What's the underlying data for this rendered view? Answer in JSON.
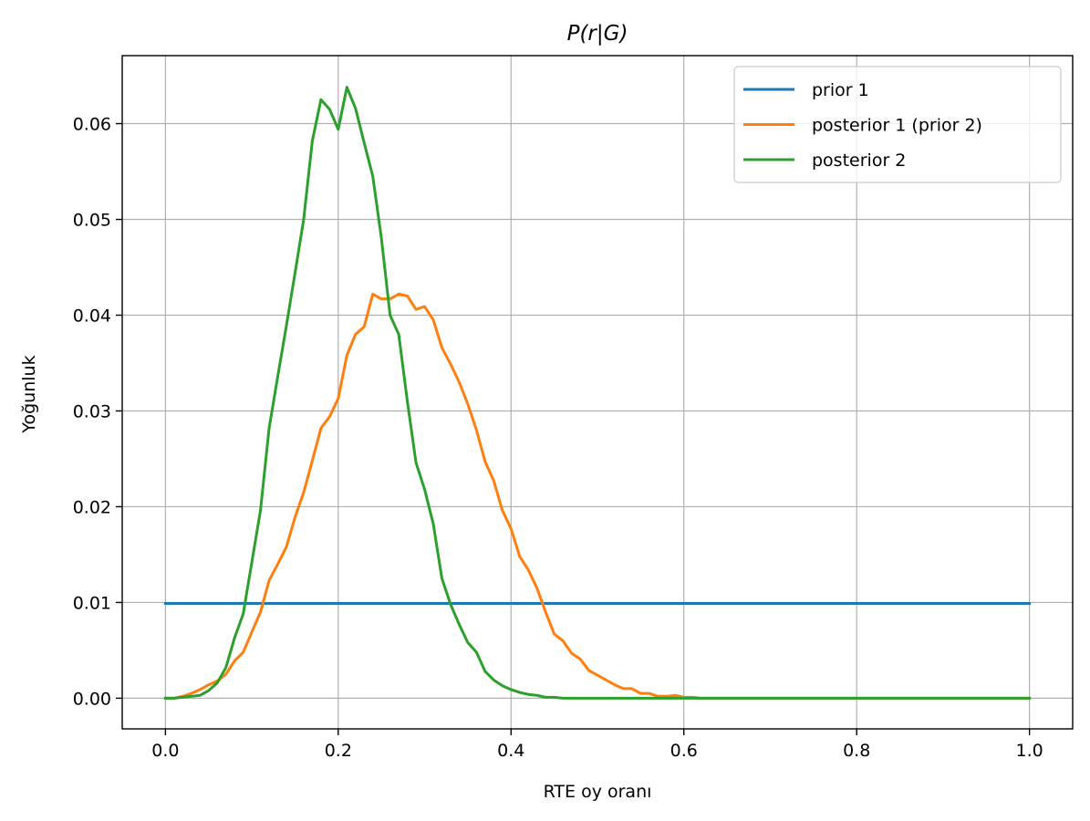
{
  "chart_data": {
    "type": "line",
    "title": "P(r|G)",
    "xlabel": "RTE oy oranı",
    "ylabel": "Yoğunluk",
    "xlim": [
      -0.05,
      1.05
    ],
    "ylim": [
      -0.0032,
      0.0671
    ],
    "xticks": [
      0.0,
      0.2,
      0.4,
      0.6,
      0.8,
      1.0
    ],
    "xtick_labels": [
      "0.0",
      "0.2",
      "0.4",
      "0.6",
      "0.8",
      "1.0"
    ],
    "yticks": [
      0.0,
      0.01,
      0.02,
      0.03,
      0.04,
      0.05,
      0.06
    ],
    "ytick_labels": [
      "0.00",
      "0.01",
      "0.02",
      "0.03",
      "0.04",
      "0.05",
      "0.06"
    ],
    "grid": true,
    "legend_position": "top-right",
    "x": [
      0.0,
      0.01,
      0.02,
      0.03,
      0.04,
      0.05,
      0.06,
      0.07,
      0.08,
      0.09,
      0.1,
      0.11,
      0.12,
      0.13,
      0.14,
      0.15,
      0.16,
      0.17,
      0.18,
      0.19,
      0.2,
      0.21,
      0.22,
      0.23,
      0.24,
      0.25,
      0.26,
      0.27,
      0.28,
      0.29,
      0.3,
      0.31,
      0.32,
      0.33,
      0.34,
      0.35,
      0.36,
      0.37,
      0.38,
      0.39,
      0.4,
      0.41,
      0.42,
      0.43,
      0.44,
      0.45,
      0.46,
      0.47,
      0.48,
      0.49,
      0.5,
      0.51,
      0.52,
      0.53,
      0.54,
      0.55,
      0.56,
      0.57,
      0.58,
      0.59,
      0.6,
      0.61,
      0.62,
      0.63,
      0.64,
      0.65,
      0.66,
      0.67,
      0.68,
      0.69,
      0.7,
      0.71,
      0.72,
      0.73,
      0.74,
      0.75,
      0.76,
      0.77,
      0.78,
      0.79,
      0.8,
      0.81,
      0.82,
      0.83,
      0.84,
      0.85,
      0.86,
      0.87,
      0.88,
      0.89,
      0.9,
      0.91,
      0.92,
      0.93,
      0.94,
      0.95,
      0.96,
      0.97,
      0.98,
      0.99,
      1.0
    ],
    "series": [
      {
        "name": "prior 1",
        "color": "#1f77b4",
        "values": [
          0.0099,
          0.0099,
          0.0099,
          0.0099,
          0.0099,
          0.0099,
          0.0099,
          0.0099,
          0.0099,
          0.0099,
          0.0099,
          0.0099,
          0.0099,
          0.0099,
          0.0099,
          0.0099,
          0.0099,
          0.0099,
          0.0099,
          0.0099,
          0.0099,
          0.0099,
          0.0099,
          0.0099,
          0.0099,
          0.0099,
          0.0099,
          0.0099,
          0.0099,
          0.0099,
          0.0099,
          0.0099,
          0.0099,
          0.0099,
          0.0099,
          0.0099,
          0.0099,
          0.0099,
          0.0099,
          0.0099,
          0.0099,
          0.0099,
          0.0099,
          0.0099,
          0.0099,
          0.0099,
          0.0099,
          0.0099,
          0.0099,
          0.0099,
          0.0099,
          0.0099,
          0.0099,
          0.0099,
          0.0099,
          0.0099,
          0.0099,
          0.0099,
          0.0099,
          0.0099,
          0.0099,
          0.0099,
          0.0099,
          0.0099,
          0.0099,
          0.0099,
          0.0099,
          0.0099,
          0.0099,
          0.0099,
          0.0099,
          0.0099,
          0.0099,
          0.0099,
          0.0099,
          0.0099,
          0.0099,
          0.0099,
          0.0099,
          0.0099,
          0.0099,
          0.0099,
          0.0099,
          0.0099,
          0.0099,
          0.0099,
          0.0099,
          0.0099,
          0.0099,
          0.0099,
          0.0099,
          0.0099,
          0.0099,
          0.0099,
          0.0099,
          0.0099,
          0.0099,
          0.0099,
          0.0099,
          0.0099,
          0.0099
        ]
      },
      {
        "name": "posterior 1 (prior 2)",
        "color": "#ff7f0e",
        "values": [
          0.0,
          0.0,
          0.0002,
          0.0005,
          0.0009,
          0.0014,
          0.0018,
          0.0025,
          0.0039,
          0.0048,
          0.0069,
          0.009,
          0.0123,
          0.014,
          0.0158,
          0.0189,
          0.0215,
          0.0248,
          0.0282,
          0.0294,
          0.0313,
          0.0358,
          0.038,
          0.0388,
          0.0422,
          0.0417,
          0.0417,
          0.0422,
          0.042,
          0.0406,
          0.0409,
          0.0395,
          0.0366,
          0.0349,
          0.033,
          0.0307,
          0.028,
          0.0247,
          0.0227,
          0.0196,
          0.0177,
          0.0148,
          0.0134,
          0.0115,
          0.009,
          0.0067,
          0.006,
          0.0047,
          0.0041,
          0.0029,
          0.0024,
          0.0019,
          0.0014,
          0.001,
          0.001,
          0.0005,
          0.0005,
          0.0002,
          0.0002,
          0.0003,
          0.0001,
          0.0001,
          0.0,
          0.0,
          0.0,
          0.0,
          0.0,
          0.0,
          0.0,
          0.0,
          0.0,
          0.0,
          0.0,
          0.0,
          0.0,
          0.0,
          0.0,
          0.0,
          0.0,
          0.0,
          0.0,
          0.0,
          0.0,
          0.0,
          0.0,
          0.0,
          0.0,
          0.0,
          0.0,
          0.0,
          0.0,
          0.0,
          0.0,
          0.0,
          0.0,
          0.0,
          0.0,
          0.0,
          0.0,
          0.0,
          0.0
        ]
      },
      {
        "name": "posterior 2",
        "color": "#2ca02c",
        "values": [
          0.0,
          0.0,
          0.0001,
          0.0002,
          0.0003,
          0.0008,
          0.0016,
          0.0032,
          0.0063,
          0.0088,
          0.0142,
          0.0196,
          0.0282,
          0.0336,
          0.0389,
          0.0444,
          0.05,
          0.0582,
          0.0625,
          0.0615,
          0.0594,
          0.0638,
          0.0616,
          0.058,
          0.0545,
          0.048,
          0.04,
          0.038,
          0.031,
          0.0246,
          0.0218,
          0.0182,
          0.0125,
          0.0098,
          0.0077,
          0.0058,
          0.0048,
          0.0028,
          0.0019,
          0.0013,
          0.0009,
          0.0006,
          0.0004,
          0.0003,
          0.0001,
          0.0001,
          0.0,
          0.0,
          0.0,
          0.0,
          0.0,
          0.0,
          0.0,
          0.0,
          0.0,
          0.0,
          0.0,
          0.0,
          0.0,
          0.0,
          0.0,
          0.0,
          0.0,
          0.0,
          0.0,
          0.0,
          0.0,
          0.0,
          0.0,
          0.0,
          0.0,
          0.0,
          0.0,
          0.0,
          0.0,
          0.0,
          0.0,
          0.0,
          0.0,
          0.0,
          0.0,
          0.0,
          0.0,
          0.0,
          0.0,
          0.0,
          0.0,
          0.0,
          0.0,
          0.0,
          0.0,
          0.0,
          0.0,
          0.0,
          0.0,
          0.0,
          0.0,
          0.0,
          0.0,
          0.0,
          0.0
        ]
      }
    ]
  }
}
